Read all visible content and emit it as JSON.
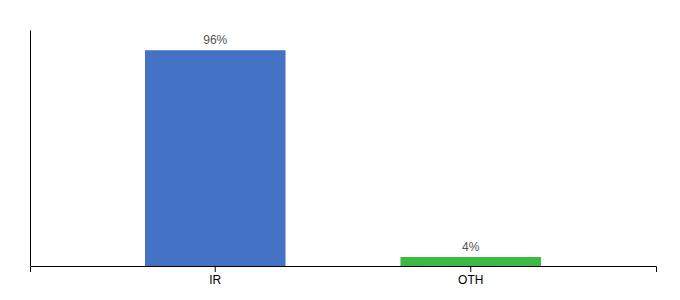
{
  "chart_data": {
    "type": "bar",
    "categories": [
      "IR",
      "OTH"
    ],
    "values": [
      96,
      4
    ],
    "value_labels": [
      "96%",
      "4%"
    ],
    "colors": [
      "#4472c4",
      "#3dba43"
    ],
    "ylim": [
      0,
      105
    ],
    "data_labels": true,
    "tick_labels": "x"
  }
}
